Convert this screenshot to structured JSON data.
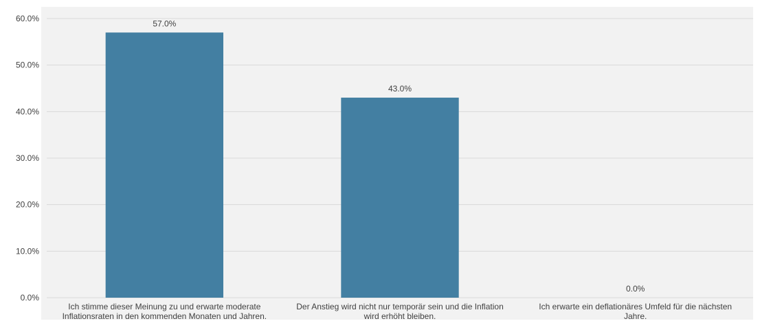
{
  "chart_data": {
    "type": "bar",
    "categories": [
      [
        "Ich stimme dieser Meinung zu und erwarte moderate",
        "Inflationsraten in den kommenden Monaten und Jahren."
      ],
      [
        "Der Anstieg wird nicht nur temporär sein und die Inflation",
        "wird erhöht bleiben."
      ],
      [
        "Ich erwarte ein deflationäres Umfeld für die nächsten",
        "Jahre."
      ]
    ],
    "values": [
      57.0,
      43.0,
      0.0
    ],
    "value_labels": [
      "57.0%",
      "43.0%",
      "0.0%"
    ],
    "y_ticks": [
      "0.0%",
      "10.0%",
      "20.0%",
      "30.0%",
      "40.0%",
      "50.0%",
      "60.0%"
    ],
    "ylim": [
      0,
      60
    ],
    "grid": true,
    "legend": "none",
    "colors": {
      "bar": "#437FA2",
      "plot_background": "#F2F2F2",
      "grid": "#D9D9D9",
      "text": "#404040"
    }
  }
}
